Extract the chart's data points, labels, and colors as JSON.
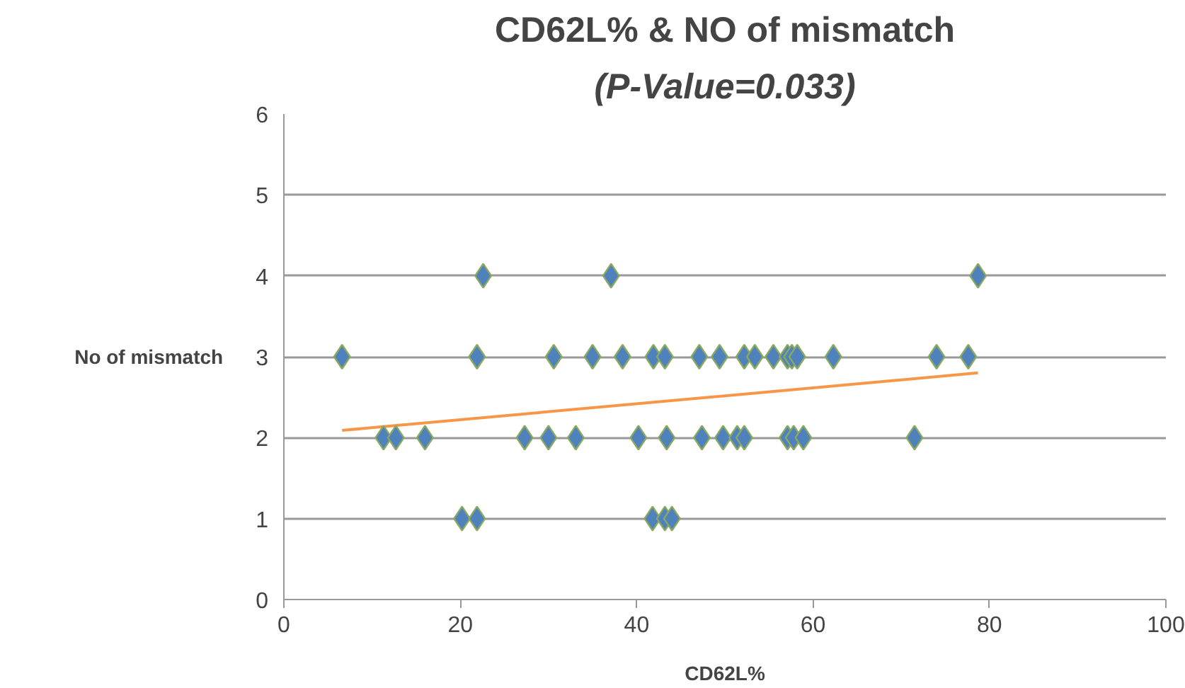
{
  "chart_data": {
    "type": "scatter",
    "title": "CD62L% & NO of mismatch",
    "subtitle": "(P-Value=0.033)",
    "xlabel": "CD62L%",
    "ylabel": "No of mismatch",
    "xlim": [
      0,
      100
    ],
    "xticks": [
      0,
      20,
      40,
      60,
      80,
      100
    ],
    "ylim": [
      0,
      6
    ],
    "yticks": [
      0,
      1,
      2,
      3,
      4,
      5,
      6
    ],
    "grid": "y",
    "marker": "diamond",
    "series": [
      {
        "color": "#4f81bd",
        "x": [
          22.6,
          37.1,
          78.7,
          6.6,
          21.9,
          30.6,
          35.0,
          38.4,
          41.9,
          43.2,
          47.1,
          49.4,
          52.2,
          53.4,
          55.5,
          57.1,
          57.6,
          58.2,
          62.3,
          74.0,
          77.6,
          11.3,
          12.7,
          16.0,
          27.3,
          30.0,
          33.1,
          40.2,
          43.4,
          47.4,
          49.8,
          51.4,
          52.2,
          57.1,
          57.8,
          58.9,
          71.5,
          20.2,
          21.9,
          41.8,
          43.2,
          44.0
        ],
        "values": [
          4,
          4,
          4,
          3,
          3,
          3,
          3,
          3,
          3,
          3,
          3,
          3,
          3,
          3,
          3,
          3,
          3,
          3,
          3,
          3,
          3,
          2,
          2,
          2,
          2,
          2,
          2,
          2,
          2,
          2,
          2,
          2,
          2,
          2,
          2,
          2,
          2,
          1,
          1,
          1,
          1,
          1
        ]
      },
      {
        "type": "line",
        "marker": "none",
        "color": "#f79646",
        "x": [
          6.6,
          78.7
        ],
        "values": [
          2.09,
          2.8
        ]
      }
    ]
  }
}
